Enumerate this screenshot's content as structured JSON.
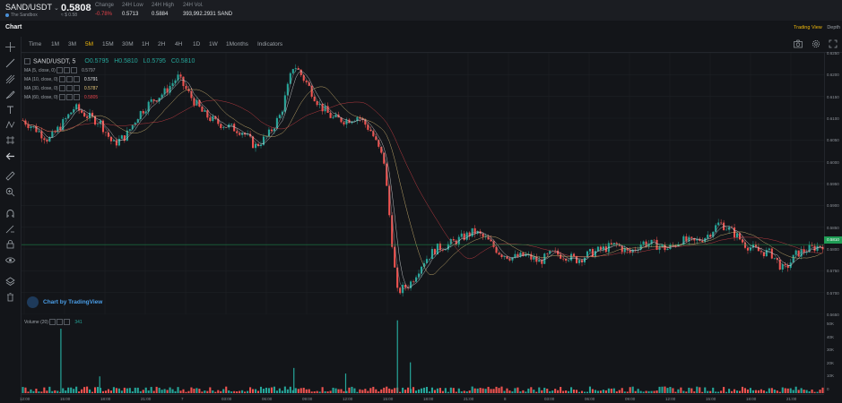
{
  "ticker": {
    "pair": "SAND/USDT",
    "coin_name": "The Sandbox",
    "last_price": "0.5808",
    "last_price_sub": "≈ $ 0.58",
    "stats": [
      {
        "label": "Change",
        "value": "-0.78%",
        "negative": true
      },
      {
        "label": "24H Low",
        "value": "0.5713",
        "negative": false
      },
      {
        "label": "24H High",
        "value": "0.5884",
        "negative": false
      },
      {
        "label": "24H Vol.",
        "value": "393,992.2931 SAND",
        "negative": false
      }
    ]
  },
  "chart_header": {
    "title": "Chart",
    "views": [
      "Trading View",
      "Depth"
    ],
    "active_view": "Trading View"
  },
  "toolbar": {
    "timeframes": [
      "Time",
      "1M",
      "3M",
      "5M",
      "15M",
      "30M",
      "1H",
      "2H",
      "4H",
      "1D",
      "1W",
      "1Months",
      "Indicators"
    ],
    "active_timeframe": "5M"
  },
  "legend": {
    "symbol": "SAND/USDT, 5",
    "ohlc": [
      "O0.5795",
      "H0.5810",
      "L0.5795",
      "C0.5810"
    ],
    "mas": [
      {
        "label": "MA (5, close, 0)",
        "value": "0.5797",
        "color": "#9aa0a6"
      },
      {
        "label": "MA (10, close, 0)",
        "value": "0.5791",
        "color": "#e6e8eb"
      },
      {
        "label": "MA (30, close, 0)",
        "value": "0.5787",
        "color": "#e6c77a"
      },
      {
        "label": "MA (60, close, 0)",
        "value": "0.5805",
        "color": "#e2434a"
      }
    ],
    "volume_label": "Volume (20)",
    "volume_value": "341"
  },
  "attribution": "Chart by TradingView",
  "price_axis": [
    "0.6250",
    "0.6200",
    "0.6150",
    "0.6100",
    "0.6050",
    "0.6000",
    "0.5950",
    "0.5900",
    "0.5850",
    "0.5800",
    "0.5750",
    "0.5700",
    "0.5650"
  ],
  "current_price_label": "0.5810",
  "volume_axis": [
    "50K",
    "40K",
    "30K",
    "20K",
    "10K",
    "0"
  ],
  "time_axis": [
    "12:00",
    "15:00",
    "18:00",
    "21:00",
    "7",
    "03:00",
    "06:00",
    "09:00",
    "12:00",
    "15:00",
    "18:00",
    "21:00",
    "8",
    "03:00",
    "06:00",
    "09:00",
    "12:00",
    "15:00",
    "18:00",
    "21:00"
  ],
  "colors": {
    "up": "#26a69a",
    "down": "#ef5350",
    "accent": "#f0b90b"
  },
  "icons": {
    "left_tools": [
      "crosshair-icon",
      "trend-line-icon",
      "pitchfork-icon",
      "brush-icon",
      "text-icon",
      "pattern-icon",
      "measure-icon",
      "arrow-left-icon",
      "ruler-icon",
      "zoom-in-icon",
      "magnet-icon",
      "lock-draw-icon",
      "lock-icon",
      "eye-icon",
      "layers-icon",
      "trash-icon"
    ],
    "toolbar_right": [
      "camera-icon",
      "settings-icon",
      "fullscreen-icon"
    ]
  },
  "chart_data": {
    "type": "candlestick",
    "series": [
      {
        "name": "SAND/USDT, 5",
        "points": [
          {
            "t": "11:00",
            "v": 0.6095
          },
          {
            "t": "13:00",
            "v": 0.6075
          },
          {
            "t": "14:00",
            "v": 0.605
          },
          {
            "t": "15:00",
            "v": 0.6085
          },
          {
            "t": "16:30",
            "v": 0.6125
          },
          {
            "t": "17:30",
            "v": 0.6105
          },
          {
            "t": "18:30",
            "v": 0.609
          },
          {
            "t": "19:30",
            "v": 0.604
          },
          {
            "t": "20:30",
            "v": 0.606
          },
          {
            "t": "21:30",
            "v": 0.611
          },
          {
            "t": "22:30",
            "v": 0.614
          },
          {
            "t": "23:30",
            "v": 0.616
          },
          {
            "t": "00:30",
            "v": 0.6195
          },
          {
            "t": "01:30",
            "v": 0.615
          },
          {
            "t": "02:30",
            "v": 0.611
          },
          {
            "t": "03:30",
            "v": 0.609
          },
          {
            "t": "04:30",
            "v": 0.608
          },
          {
            "t": "05:30",
            "v": 0.607
          },
          {
            "t": "06:30",
            "v": 0.6035
          },
          {
            "t": "07:30",
            "v": 0.606
          },
          {
            "t": "08:30",
            "v": 0.611
          },
          {
            "t": "09:00",
            "v": 0.6225
          },
          {
            "t": "09:30",
            "v": 0.618
          },
          {
            "t": "10:30",
            "v": 0.613
          },
          {
            "t": "11:30",
            "v": 0.61
          },
          {
            "t": "12:30",
            "v": 0.6095
          },
          {
            "t": "13:30",
            "v": 0.6105
          },
          {
            "t": "14:30",
            "v": 0.607
          },
          {
            "t": "15:00",
            "v": 0.6
          },
          {
            "t": "15:10",
            "v": 0.57
          },
          {
            "t": "15:30",
            "v": 0.572
          },
          {
            "t": "16:30",
            "v": 0.577
          },
          {
            "t": "17:30",
            "v": 0.58
          },
          {
            "t": "18:30",
            "v": 0.581
          },
          {
            "t": "19:30",
            "v": 0.5825
          },
          {
            "t": "20:30",
            "v": 0.584
          },
          {
            "t": "21:30",
            "v": 0.582
          },
          {
            "t": "22:30",
            "v": 0.579
          },
          {
            "t": "23:30",
            "v": 0.578
          },
          {
            "t": "00:30",
            "v": 0.5785
          },
          {
            "t": "01:30",
            "v": 0.577
          },
          {
            "t": "02:30",
            "v": 0.579
          },
          {
            "t": "03:30",
            "v": 0.5785
          },
          {
            "t": "04:30",
            "v": 0.5775
          },
          {
            "t": "05:30",
            "v": 0.579
          },
          {
            "t": "06:30",
            "v": 0.58
          },
          {
            "t": "07:30",
            "v": 0.581
          },
          {
            "t": "08:30",
            "v": 0.579
          },
          {
            "t": "09:30",
            "v": 0.5815
          },
          {
            "t": "10:30",
            "v": 0.581
          },
          {
            "t": "11:30",
            "v": 0.58
          },
          {
            "t": "12:30",
            "v": 0.582
          },
          {
            "t": "13:30",
            "v": 0.5815
          },
          {
            "t": "14:30",
            "v": 0.583
          },
          {
            "t": "15:30",
            "v": 0.586
          },
          {
            "t": "16:30",
            "v": 0.584
          },
          {
            "t": "17:30",
            "v": 0.581
          },
          {
            "t": "18:30",
            "v": 0.5795
          },
          {
            "t": "19:30",
            "v": 0.579
          },
          {
            "t": "20:00",
            "v": 0.575
          },
          {
            "t": "20:30",
            "v": 0.579
          },
          {
            "t": "21:00",
            "v": 0.58
          },
          {
            "t": "21:30",
            "v": 0.581
          }
        ]
      }
    ],
    "yrange": [
      0.565,
      0.625
    ],
    "current_price": 0.581,
    "volume": [
      {
        "t": "15:00",
        "v": 46000
      },
      {
        "t": "09:00",
        "v": 18000
      },
      {
        "t": "15:10",
        "v": 52000
      },
      {
        "t": "15:30",
        "v": 22000
      },
      {
        "t": "12:30",
        "v": 14000
      },
      {
        "t": "18:30",
        "v": 12000
      }
    ],
    "volume_range": [
      0,
      55000
    ]
  }
}
